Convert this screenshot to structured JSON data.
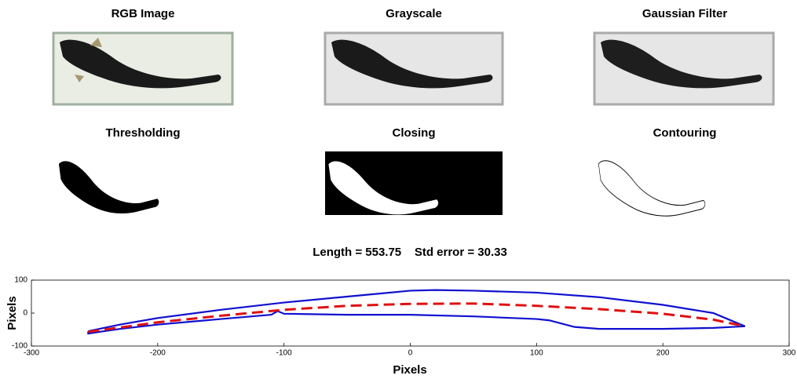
{
  "panels": [
    {
      "title": "RGB Image"
    },
    {
      "title": "Grayscale"
    },
    {
      "title": "Gaussian Filter"
    },
    {
      "title": "Thresholding"
    },
    {
      "title": "Closing"
    },
    {
      "title": "Contouring"
    }
  ],
  "chart_data": {
    "type": "line",
    "title": "Length = 553.75    Std error = 30.33",
    "xlabel": "Pixels",
    "ylabel": "Pixels",
    "xlim": [
      -300,
      300
    ],
    "xticks": [
      -300,
      -200,
      -100,
      0,
      100,
      200,
      300
    ],
    "ylim": [
      -100,
      100
    ],
    "yticks": [
      -100,
      0,
      100
    ],
    "series": [
      {
        "color": "#1010d0",
        "dash": false,
        "x": [
          -255,
          -230,
          -200,
          -150,
          -100,
          -50,
          0,
          20,
          50,
          100,
          150,
          200,
          240,
          265,
          240,
          200,
          150,
          130,
          110,
          100,
          50,
          0,
          -50,
          -100,
          -105,
          -110,
          -150,
          -200,
          -230,
          -255,
          -255
        ],
        "values": [
          -55,
          -35,
          -15,
          10,
          32,
          50,
          68,
          70,
          68,
          62,
          48,
          25,
          0,
          -40,
          -45,
          -48,
          -48,
          -42,
          -22,
          -18,
          -10,
          -5,
          -5,
          -2,
          6,
          -5,
          -18,
          -35,
          -48,
          -62,
          -55
        ]
      },
      {
        "color": "#e01010",
        "dash": true,
        "x": [
          -255,
          -200,
          -150,
          -100,
          -50,
          0,
          50,
          100,
          150,
          200,
          240,
          265
        ],
        "values": [
          -57,
          -28,
          -8,
          10,
          22,
          28,
          29,
          22,
          12,
          -2,
          -20,
          -40
        ]
      }
    ]
  }
}
